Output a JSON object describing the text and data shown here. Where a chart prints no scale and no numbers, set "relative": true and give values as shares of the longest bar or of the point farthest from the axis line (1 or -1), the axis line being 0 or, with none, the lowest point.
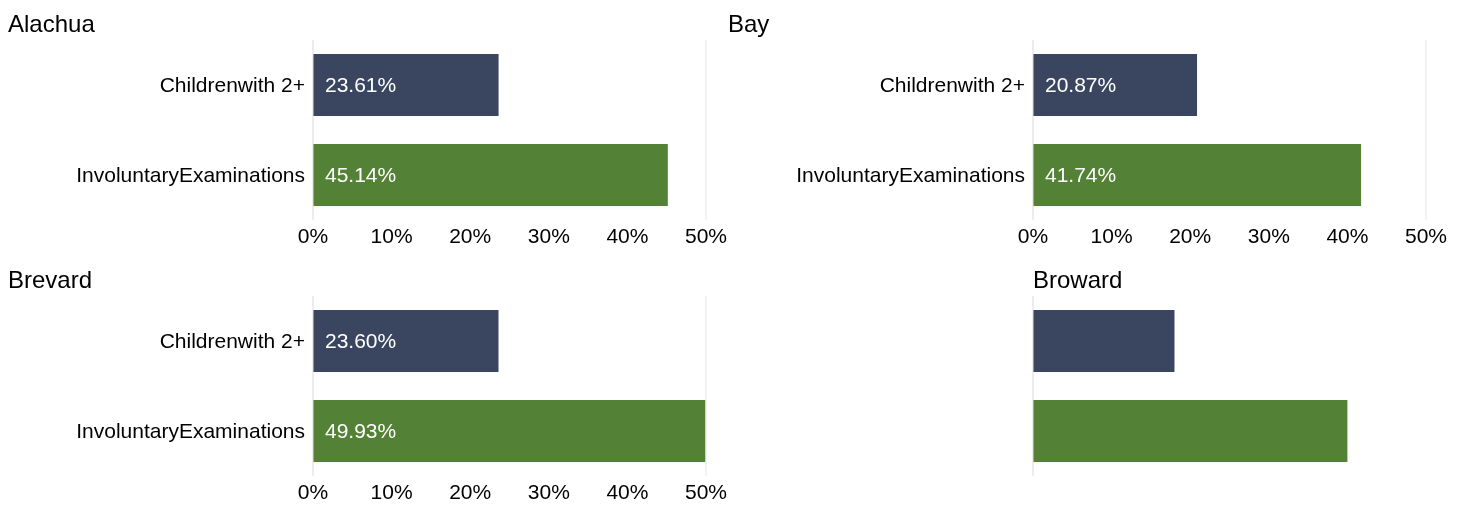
{
  "chart_data": [
    {
      "type": "bar",
      "orientation": "horizontal",
      "title": "Alachua",
      "categories": [
        "Childrenwith 2+",
        "InvoluntaryExaminations"
      ],
      "values": [
        23.61,
        45.14
      ],
      "colors": [
        "#3a4660",
        "#538135"
      ],
      "value_labels": [
        "23.61%",
        "45.14%"
      ],
      "xlim": [
        0,
        50
      ],
      "xticks": [
        {
          "value": 0,
          "label": "0%"
        },
        {
          "value": 10,
          "label": "10%"
        },
        {
          "value": 20,
          "label": "20%"
        },
        {
          "value": 30,
          "label": "30%"
        },
        {
          "value": 40,
          "label": "40%"
        },
        {
          "value": 50,
          "label": "50%"
        }
      ],
      "ref_lines": [
        {
          "axis": "x",
          "value": 50,
          "color": "#e6e6e6"
        }
      ]
    },
    {
      "type": "bar",
      "orientation": "horizontal",
      "title": "Bay",
      "categories": [
        "Childrenwith 2+",
        "InvoluntaryExaminations"
      ],
      "values": [
        20.87,
        41.74
      ],
      "colors": [
        "#3a4660",
        "#538135"
      ],
      "value_labels": [
        "20.87%",
        "41.74%"
      ],
      "xlim": [
        0,
        50
      ],
      "xticks": [
        {
          "value": 0,
          "label": "0%"
        },
        {
          "value": 10,
          "label": "10%"
        },
        {
          "value": 20,
          "label": "20%"
        },
        {
          "value": 30,
          "label": "30%"
        },
        {
          "value": 40,
          "label": "40%"
        },
        {
          "value": 50,
          "label": "50%"
        }
      ],
      "ref_lines": [
        {
          "axis": "x",
          "value": 50,
          "color": "#e6e6e6"
        }
      ]
    },
    {
      "type": "bar",
      "orientation": "horizontal",
      "title": "Brevard",
      "categories": [
        "Childrenwith 2+",
        "InvoluntaryExaminations"
      ],
      "values": [
        23.6,
        49.93
      ],
      "colors": [
        "#3a4660",
        "#538135"
      ],
      "value_labels": [
        "23.60%",
        "49.93%"
      ],
      "xlim": [
        0,
        50
      ],
      "xticks": [
        {
          "value": 0,
          "label": "0%"
        },
        {
          "value": 10,
          "label": "10%"
        },
        {
          "value": 20,
          "label": "20%"
        },
        {
          "value": 30,
          "label": "30%"
        },
        {
          "value": 40,
          "label": "40%"
        },
        {
          "value": 50,
          "label": "50%"
        }
      ],
      "ref_lines": [
        {
          "axis": "x",
          "value": 50,
          "color": "#e6e6e6"
        }
      ]
    },
    {
      "type": "bar",
      "orientation": "horizontal",
      "title": "Broward",
      "categories": [
        null,
        null
      ],
      "values": [
        0.45,
        1
      ],
      "colors": [
        "#3a4660",
        "#538135"
      ],
      "relative": true
    }
  ]
}
